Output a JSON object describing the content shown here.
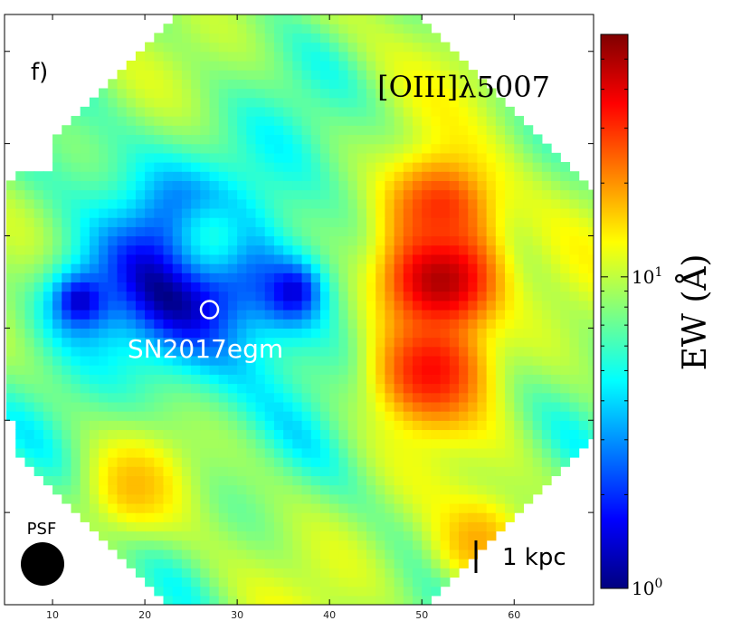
{
  "chart_data": {
    "type": "heatmap",
    "panel_label": "f)",
    "title": "[OIII]λ5007",
    "colorbar": {
      "label": "EW (Å)",
      "scale": "log",
      "range": [
        1,
        60
      ],
      "colormap": "jet",
      "ticks": [
        {
          "value": 1,
          "base": "10",
          "exp": "0"
        },
        {
          "value": 10,
          "base": "10",
          "exp": "1"
        }
      ]
    },
    "x_axis": {
      "range": [
        4.8,
        68.6
      ],
      "ticks": [
        10,
        20,
        30,
        40,
        50,
        60
      ],
      "tick_labels": [
        "10",
        "20",
        "30",
        "40",
        "50",
        "60"
      ]
    },
    "y_axis": {
      "range": [
        0,
        64
      ],
      "tick_labels_shown": false
    },
    "annotations": [
      {
        "type": "marker",
        "shape": "circle",
        "label": "SN2017egm",
        "x": 27,
        "y": 32
      },
      {
        "type": "scalebar",
        "label": "1 kpc",
        "length": 3.5
      },
      {
        "type": "psf",
        "label": "PSF"
      }
    ],
    "components": [
      {
        "x": 52,
        "y": 35.5,
        "ew": 52
      },
      {
        "x": 51,
        "y": 25.5,
        "ew": 35
      },
      {
        "x": 52,
        "y": 43,
        "ew": 30
      },
      {
        "x": 19,
        "y": 13,
        "ew": 17
      },
      {
        "x": 56,
        "y": 7,
        "ew": 18
      },
      {
        "x": 27.5,
        "y": 40,
        "ew": 5
      },
      {
        "x": 13,
        "y": 33,
        "ew": 1.3
      },
      {
        "x": 36,
        "y": 34,
        "ew": 1.4
      }
    ]
  }
}
